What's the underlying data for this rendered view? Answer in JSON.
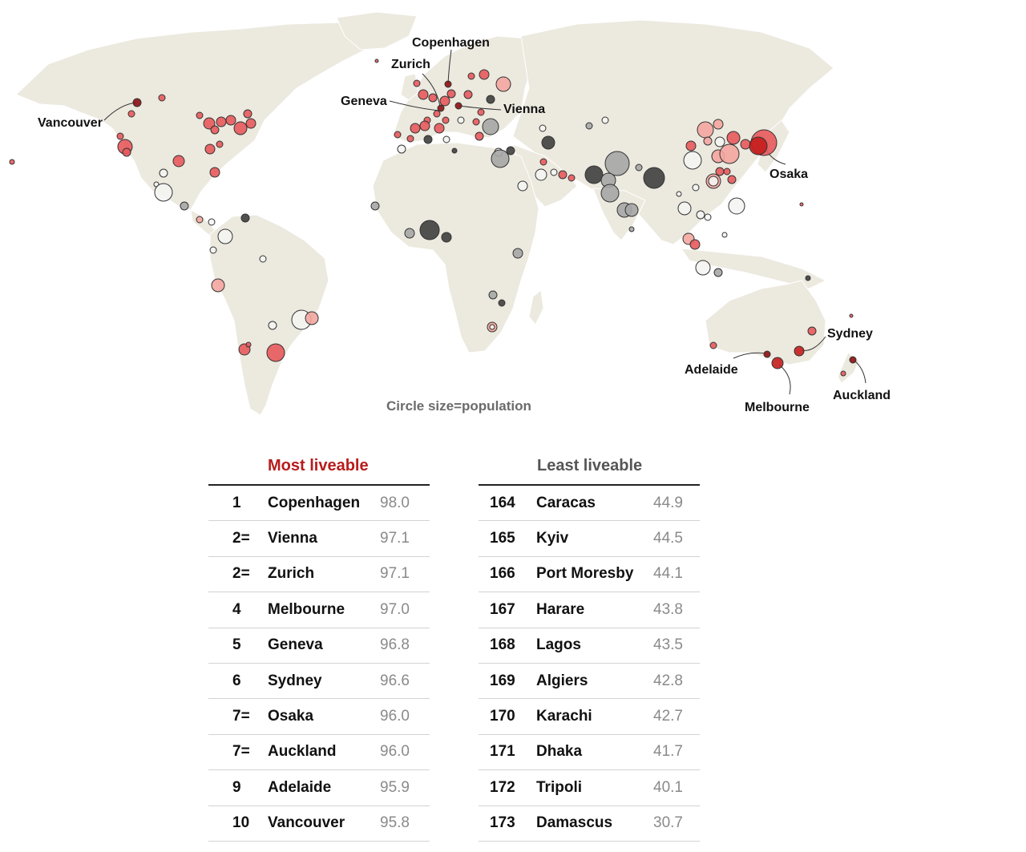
{
  "colors": {
    "most": "#b81c1c",
    "least": "#555555",
    "land": "#ece9df",
    "high": "#e8595c",
    "mid": "#f4a6a0",
    "neutral": "#f4f4f2",
    "low": "#a6a6a6",
    "lowest": "#3f3f3f"
  },
  "map": {
    "note": "Circle size=population",
    "labels": {
      "vancouver": "Vancouver",
      "copenhagen": "Copenhagen",
      "zurich": "Zurich",
      "geneva": "Geneva",
      "vienna": "Vienna",
      "osaka": "Osaka",
      "sydney": "Sydney",
      "adelaide": "Adelaide",
      "melbourne": "Melbourne",
      "auckland": "Auckland"
    }
  },
  "most": {
    "title": "Most liveable",
    "rows": [
      {
        "rank": "1",
        "city": "Copenhagen",
        "score": "98.0"
      },
      {
        "rank": "2=",
        "city": "Vienna",
        "score": "97.1"
      },
      {
        "rank": "2=",
        "city": "Zurich",
        "score": "97.1"
      },
      {
        "rank": "4",
        "city": "Melbourne",
        "score": "97.0"
      },
      {
        "rank": "5",
        "city": "Geneva",
        "score": "96.8"
      },
      {
        "rank": "6",
        "city": "Sydney",
        "score": "96.6"
      },
      {
        "rank": "7=",
        "city": "Osaka",
        "score": "96.0"
      },
      {
        "rank": "7=",
        "city": "Auckland",
        "score": "96.0"
      },
      {
        "rank": "9",
        "city": "Adelaide",
        "score": "95.9"
      },
      {
        "rank": "10",
        "city": "Vancouver",
        "score": "95.8"
      }
    ]
  },
  "least": {
    "title": "Least liveable",
    "rows": [
      {
        "rank": "164",
        "city": "Caracas",
        "score": "44.9"
      },
      {
        "rank": "165",
        "city": "Kyiv",
        "score": "44.5"
      },
      {
        "rank": "166",
        "city": "Port Moresby",
        "score": "44.1"
      },
      {
        "rank": "167",
        "city": "Harare",
        "score": "43.8"
      },
      {
        "rank": "168",
        "city": "Lagos",
        "score": "43.5"
      },
      {
        "rank": "169",
        "city": "Algiers",
        "score": "42.8"
      },
      {
        "rank": "170",
        "city": "Karachi",
        "score": "42.7"
      },
      {
        "rank": "171",
        "city": "Dhaka",
        "score": "41.7"
      },
      {
        "rank": "172",
        "city": "Tripoli",
        "score": "40.1"
      },
      {
        "rank": "173",
        "city": "Damascus",
        "score": "30.7"
      }
    ]
  }
}
